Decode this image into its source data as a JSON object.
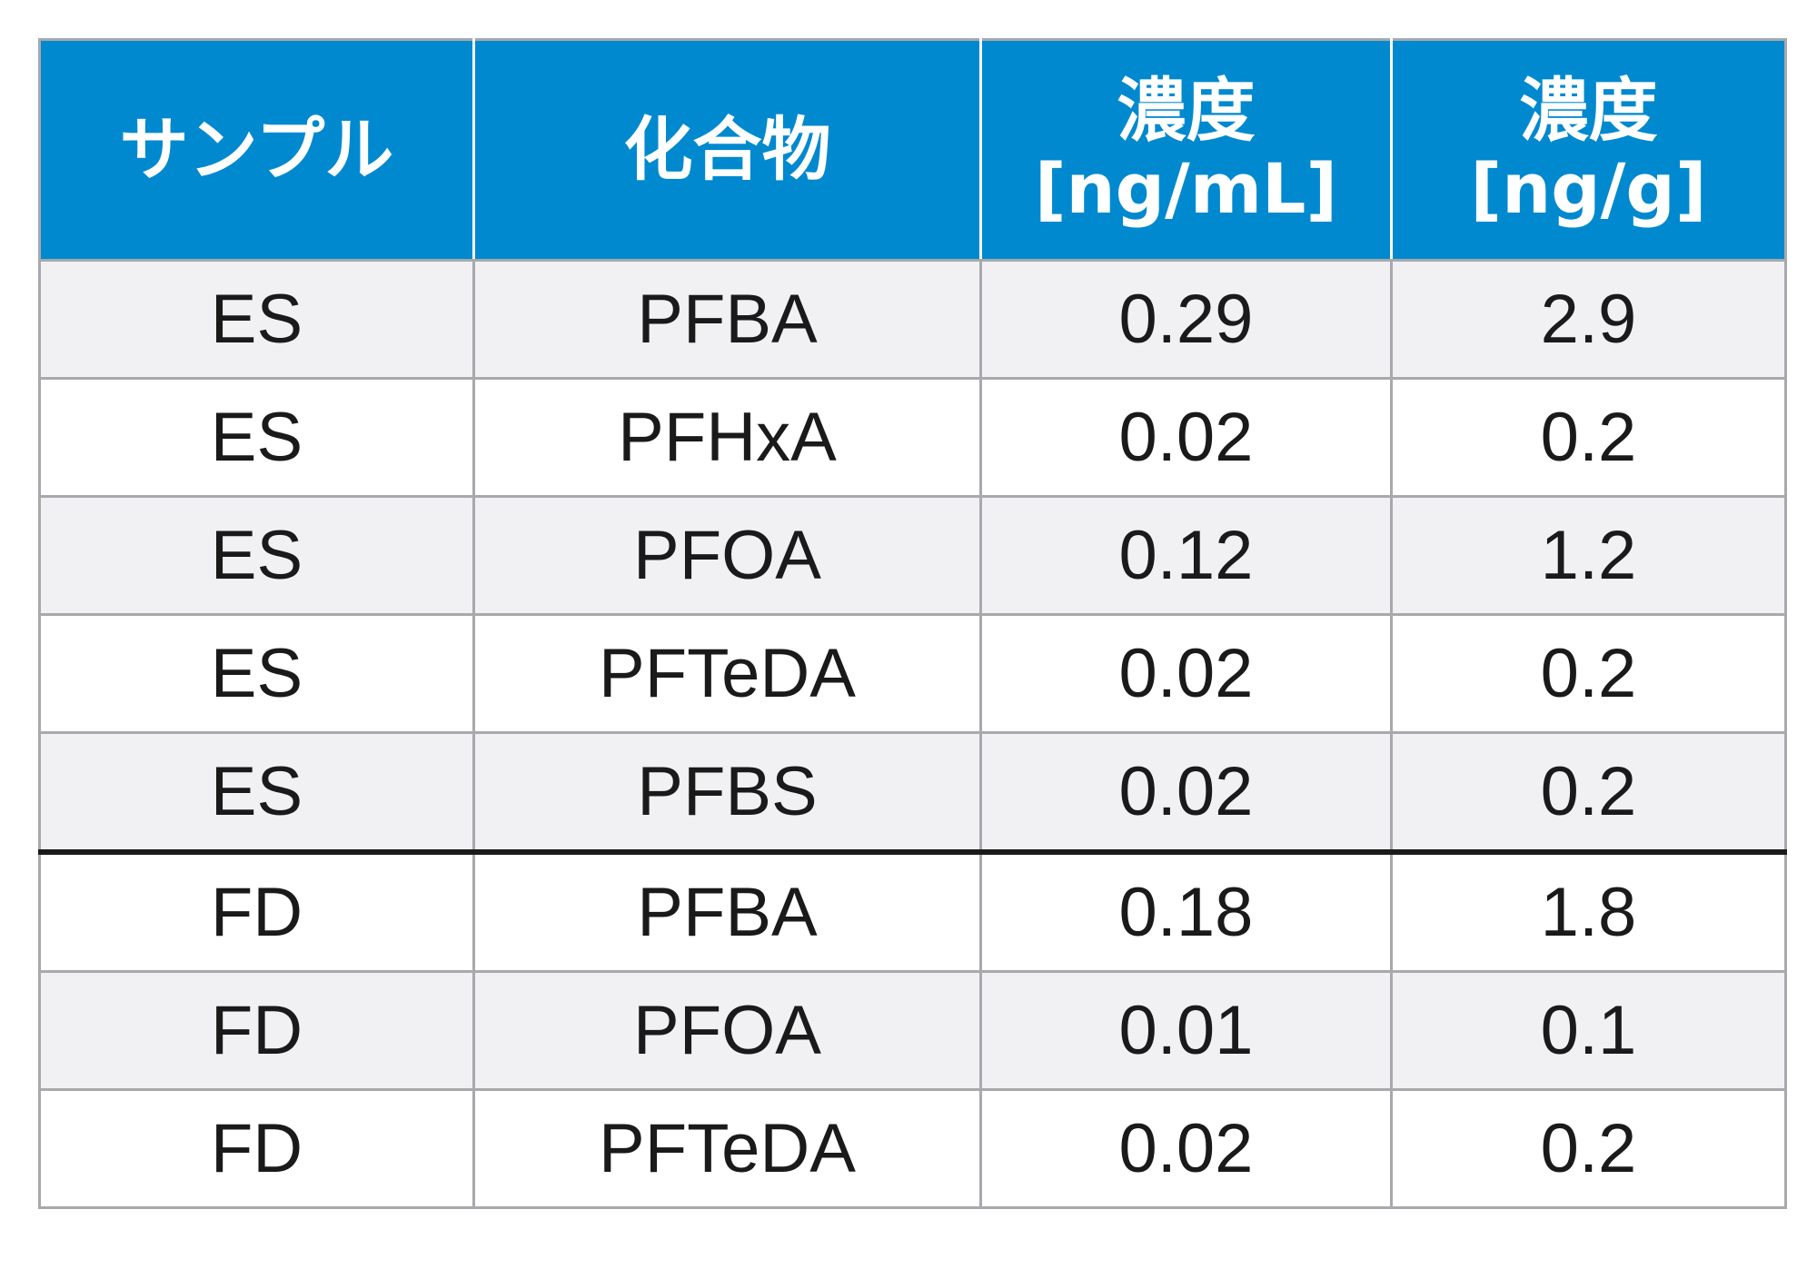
{
  "table": {
    "headers": [
      {
        "lines": [
          "サンプル"
        ]
      },
      {
        "lines": [
          "化合物"
        ]
      },
      {
        "lines": [
          "濃度",
          "[ng/mL]"
        ]
      },
      {
        "lines": [
          "濃度",
          "[ng/g]"
        ]
      }
    ],
    "rows": [
      {
        "sample": "ES",
        "compound": "PFBA",
        "conc_ng_ml": "0.29",
        "conc_ng_g": "2.9"
      },
      {
        "sample": "ES",
        "compound": "PFHxA",
        "conc_ng_ml": "0.02",
        "conc_ng_g": "0.2"
      },
      {
        "sample": "ES",
        "compound": "PFOA",
        "conc_ng_ml": "0.12",
        "conc_ng_g": "1.2"
      },
      {
        "sample": "ES",
        "compound": "PFTeDA",
        "conc_ng_ml": "0.02",
        "conc_ng_g": "0.2"
      },
      {
        "sample": "ES",
        "compound": "PFBS",
        "conc_ng_ml": "0.02",
        "conc_ng_g": "0.2"
      },
      {
        "sample": "FD",
        "compound": "PFBA",
        "conc_ng_ml": "0.18",
        "conc_ng_g": "1.8"
      },
      {
        "sample": "FD",
        "compound": "PFOA",
        "conc_ng_ml": "0.01",
        "conc_ng_g": "0.1"
      },
      {
        "sample": "FD",
        "compound": "PFTeDA",
        "conc_ng_ml": "0.02",
        "conc_ng_g": "0.2"
      }
    ]
  },
  "colors": {
    "header_background": "#0089cf",
    "header_text": "#ffffff",
    "row_shaded": "#f1f1f3",
    "row_plain": "#ffffff",
    "grid_line": "#a7a9ac",
    "group_separator": "#1a1a1a"
  }
}
